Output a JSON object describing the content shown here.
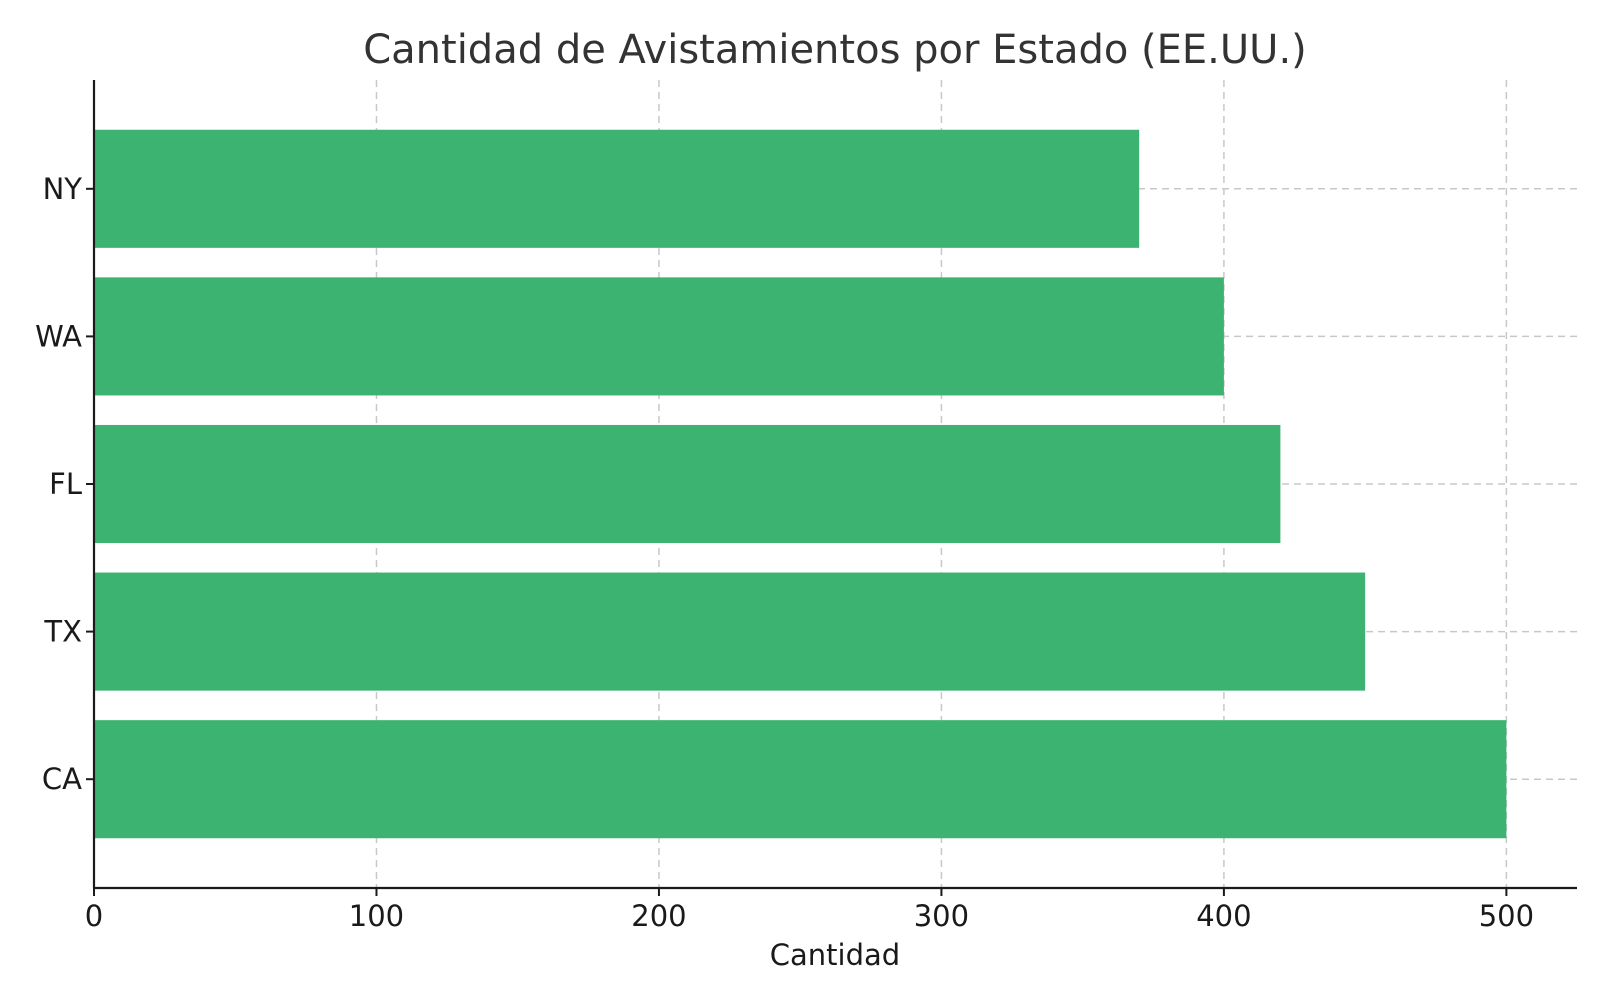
{
  "chart_data": {
    "type": "bar",
    "orientation": "horizontal",
    "title": "Cantidad de Avistamientos por Estado (EE.UU.)",
    "xlabel": "Cantidad",
    "ylabel": "",
    "categories": [
      "CA",
      "TX",
      "FL",
      "WA",
      "NY"
    ],
    "values": [
      500,
      450,
      420,
      400,
      370
    ],
    "xlim": [
      0,
      525
    ],
    "xticks": [
      "0",
      "100",
      "200",
      "300",
      "400",
      "500"
    ],
    "xtick_values": [
      0,
      100,
      200,
      300,
      400,
      500
    ],
    "grid": true,
    "bar_color": "#3cb371"
  }
}
